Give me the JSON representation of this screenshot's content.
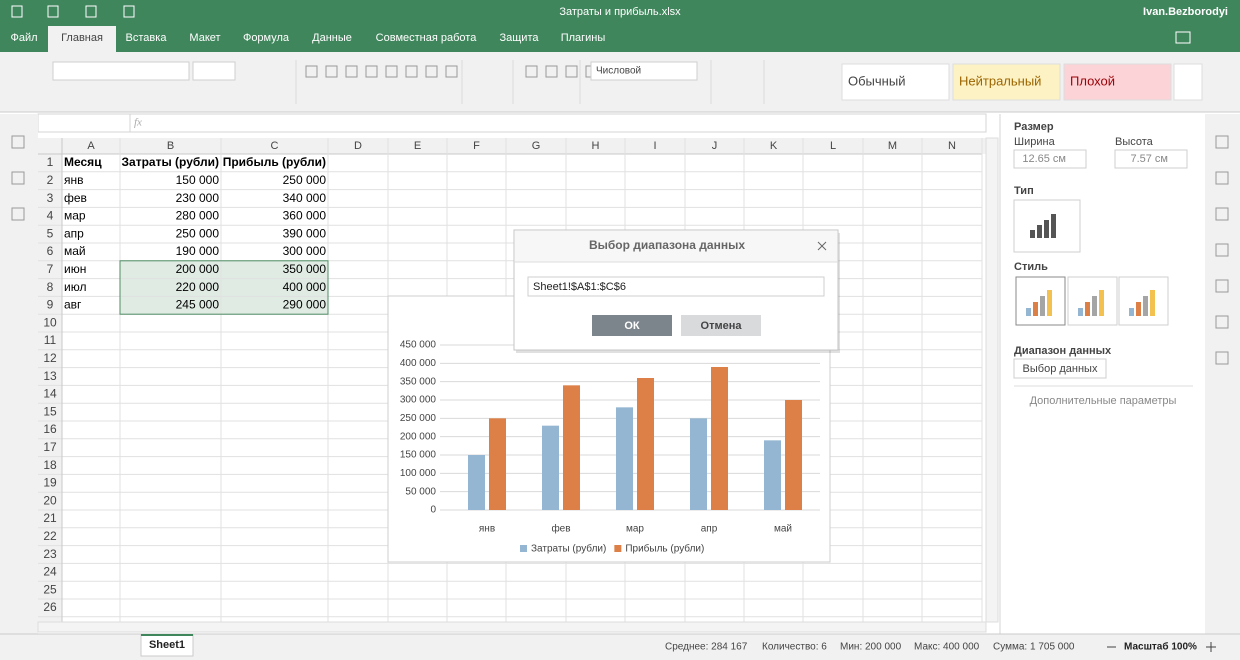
{
  "title_bar": {
    "file_name": "Затраты и прибыль.xlsx",
    "user": "Ivan.Bezborodyi"
  },
  "menu": [
    "Файл",
    "Главная",
    "Вставка",
    "Макет",
    "Формула",
    "Данные",
    "Совместная работа",
    "Защита",
    "Плагины"
  ],
  "toolbar": {
    "number_format": "Числовой",
    "cell_styles": [
      "Обычный",
      "Нейтральный",
      "Плохой"
    ]
  },
  "sheet": {
    "columns": [
      "A",
      "B",
      "C",
      "D",
      "E",
      "F",
      "G",
      "H",
      "I",
      "J",
      "K",
      "L",
      "M",
      "N"
    ],
    "row_numbers": [
      1,
      2,
      3,
      4,
      5,
      6,
      7,
      8,
      9,
      10,
      11,
      12,
      13,
      14,
      15,
      16,
      17,
      18,
      19,
      20,
      21,
      22,
      23,
      24,
      25,
      26
    ],
    "rows": [
      [
        "Месяц",
        "Затраты (рубли)",
        "Прибыль (рубли)"
      ],
      [
        "янв",
        "150 000",
        "250 000"
      ],
      [
        "фев",
        "230 000",
        "340 000"
      ],
      [
        "мар",
        "280 000",
        "360 000"
      ],
      [
        "апр",
        "250 000",
        "390 000"
      ],
      [
        "май",
        "190 000",
        "300 000"
      ],
      [
        "июн",
        "200 000",
        "350 000"
      ],
      [
        "июл",
        "220 000",
        "400 000"
      ],
      [
        "авг",
        "245 000",
        "290 000"
      ]
    ]
  },
  "chart_data": {
    "type": "bar",
    "categories": [
      "янв",
      "фев",
      "мар",
      "апр",
      "май"
    ],
    "series": [
      {
        "name": "Затраты (рубли)",
        "color": "#94b6d2",
        "values": [
          150000,
          230000,
          280000,
          250000,
          190000
        ]
      },
      {
        "name": "Прибыль (рубли)",
        "color": "#dd8047",
        "values": [
          250000,
          340000,
          360000,
          390000,
          300000
        ]
      }
    ],
    "ylim": [
      0,
      450000
    ],
    "yticks": [
      0,
      {
        "value": 50000,
        "label": "50 000"
      },
      {
        "value": 100000,
        "label": "100 000"
      },
      {
        "value": 150000,
        "label": "150 000"
      },
      {
        "value": 200000,
        "label": "200 000"
      },
      {
        "value": 250000,
        "label": "250 000"
      },
      {
        "value": 300000,
        "label": "300 000"
      },
      {
        "value": 350000,
        "label": "350 000"
      },
      {
        "value": 400000,
        "label": "400 000"
      },
      {
        "value": 450000,
        "label": "450 000"
      }
    ],
    "grid": true,
    "legend": "bottom"
  },
  "dialog": {
    "title": "Выбор диапазона данных",
    "range": "Sheet1!$A$1:$C$6",
    "ok": "ОК",
    "cancel": "Отмена"
  },
  "panel": {
    "size": "Размер",
    "width_label": "Ширина",
    "height_label": "Высота",
    "width": "12.65 см",
    "height": "7.57 см",
    "type": "Тип",
    "style": "Стиль",
    "data_range": "Диапазон данных",
    "select_data": "Выбор данных",
    "advanced": "Дополнительные параметры"
  },
  "status": {
    "sheet": "Sheet1",
    "average": "Среднее: 284 167",
    "count": "Количество: 6",
    "min": "Мин: 200 000",
    "max": "Макс: 400 000",
    "sum": "Сумма: 1 705 000",
    "zoom": "Масштаб 100%"
  }
}
